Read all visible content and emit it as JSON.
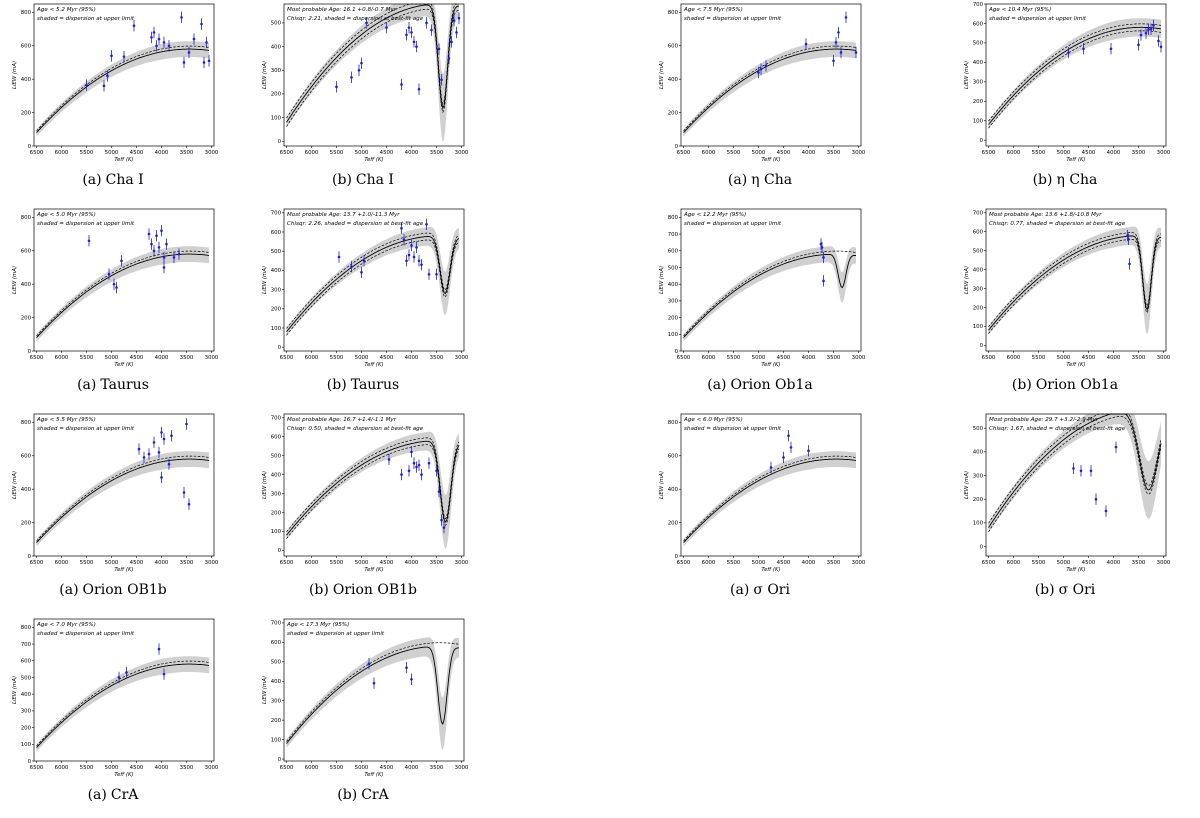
{
  "common": {
    "ylabel": "LiEW (mA)",
    "xlabel": "Teff (K)",
    "xticks": [
      6500,
      6000,
      5500,
      5000,
      4500,
      4000,
      3500,
      3000
    ]
  },
  "colors": {
    "data": "#1f1fd0",
    "band": "#d0d0d0",
    "line": "#000000"
  },
  "chart_data": [
    {
      "type": "line",
      "caption": {
        "prefix": "(a)",
        "name": "Cha I"
      },
      "kind": "upper",
      "ann": [
        "Age < 5.2 Myr (95%)",
        "shaded = dispersion at upper limit"
      ],
      "ylim": [
        0,
        850
      ],
      "yticks": [
        0,
        200,
        400,
        600,
        800
      ],
      "dip": null,
      "points": [
        [
          5500,
          365
        ],
        [
          5150,
          360
        ],
        [
          5080,
          420
        ],
        [
          5000,
          540
        ],
        [
          4750,
          535
        ],
        [
          4550,
          720
        ],
        [
          4200,
          650
        ],
        [
          4150,
          680
        ],
        [
          4100,
          600
        ],
        [
          4050,
          640
        ],
        [
          3950,
          620
        ],
        [
          3850,
          600
        ],
        [
          3600,
          770
        ],
        [
          3550,
          500
        ],
        [
          3450,
          560
        ],
        [
          3350,
          640
        ],
        [
          3200,
          730
        ],
        [
          3150,
          500
        ],
        [
          3100,
          620
        ],
        [
          3050,
          510
        ]
      ]
    },
    {
      "type": "line",
      "caption": {
        "prefix": "(b)",
        "name": "Cha I"
      },
      "kind": "best",
      "ann": [
        "Most probable Age: 16.1 +0.8/-0.7 Myr",
        "Chisqr: 2.21, shaded = dispersion at best-fit age"
      ],
      "ylim": [
        -20,
        580
      ],
      "yticks": [
        0,
        100,
        200,
        300,
        400,
        500
      ],
      "dip": {
        "center": 3370,
        "width": 130,
        "depth": 440
      },
      "points": [
        [
          5500,
          230
        ],
        [
          5200,
          270
        ],
        [
          5050,
          300
        ],
        [
          5000,
          330
        ],
        [
          4900,
          500
        ],
        [
          4500,
          480
        ],
        [
          4200,
          240
        ],
        [
          4100,
          450
        ],
        [
          4050,
          480
        ],
        [
          4000,
          460
        ],
        [
          3950,
          420
        ],
        [
          3900,
          400
        ],
        [
          3850,
          220
        ],
        [
          3700,
          500
        ],
        [
          3600,
          470
        ],
        [
          3450,
          390
        ],
        [
          3400,
          260
        ],
        [
          3250,
          350
        ],
        [
          3200,
          420
        ],
        [
          3150,
          510
        ],
        [
          3100,
          460
        ],
        [
          3050,
          520
        ]
      ]
    },
    {
      "type": "line",
      "caption": {
        "prefix": "(a)",
        "name": "η Cha"
      },
      "kind": "upper",
      "ann": [
        "Age < 7.5 Myr (95%)",
        "shaded = dispersion at upper limit"
      ],
      "ylim": [
        0,
        850
      ],
      "yticks": [
        0,
        200,
        400,
        600,
        800
      ],
      "dip": null,
      "points": [
        [
          5000,
          440
        ],
        [
          4950,
          460
        ],
        [
          4850,
          480
        ],
        [
          4050,
          610
        ],
        [
          3500,
          510
        ],
        [
          3450,
          620
        ],
        [
          3400,
          680
        ],
        [
          3350,
          560
        ],
        [
          3250,
          770
        ],
        [
          3050,
          560
        ]
      ]
    },
    {
      "type": "line",
      "caption": {
        "prefix": "(b)",
        "name": "η Cha"
      },
      "kind": "best",
      "ann": [
        "Age < 10.4 Myr (95%)",
        "shaded = dispersion at upper limit"
      ],
      "ylim": [
        -30,
        700
      ],
      "yticks": [
        0,
        100,
        200,
        300,
        400,
        500,
        600,
        700
      ],
      "dip": null,
      "points": [
        [
          4900,
          450
        ],
        [
          4600,
          470
        ],
        [
          4050,
          470
        ],
        [
          3500,
          490
        ],
        [
          3450,
          540
        ],
        [
          3350,
          550
        ],
        [
          3300,
          570
        ],
        [
          3250,
          570
        ],
        [
          3200,
          590
        ],
        [
          3100,
          510
        ],
        [
          3050,
          480
        ]
      ]
    },
    {
      "type": "line",
      "caption": {
        "prefix": "(a)",
        "name": "Taurus"
      },
      "kind": "upper",
      "ann": [
        "Age < 5.0 Myr (95%)",
        "shaded = dispersion at upper limit"
      ],
      "ylim": [
        0,
        850
      ],
      "yticks": [
        0,
        200,
        400,
        600,
        800
      ],
      "dip": null,
      "points": [
        [
          5450,
          660
        ],
        [
          5050,
          460
        ],
        [
          4950,
          400
        ],
        [
          4900,
          380
        ],
        [
          4800,
          540
        ],
        [
          4250,
          700
        ],
        [
          4200,
          640
        ],
        [
          4150,
          600
        ],
        [
          4100,
          690
        ],
        [
          4050,
          620
        ],
        [
          4000,
          720
        ],
        [
          3950,
          560
        ],
        [
          3950,
          500
        ],
        [
          3900,
          640
        ],
        [
          3750,
          560
        ],
        [
          3650,
          580
        ]
      ]
    },
    {
      "type": "line",
      "caption": {
        "prefix": "(b)",
        "name": "Taurus"
      },
      "kind": "best",
      "ann": [
        "Most probable Age: 13.7 +1.0/-11.3 Myr",
        "Chisqr: 2.26, shaded = dispersion at best-fit age"
      ],
      "ylim": [
        -20,
        720
      ],
      "yticks": [
        0,
        100,
        200,
        300,
        400,
        500,
        600,
        700
      ],
      "dip": {
        "center": 3330,
        "width": 140,
        "depth": 300
      },
      "points": [
        [
          5450,
          470
        ],
        [
          5200,
          420
        ],
        [
          5000,
          390
        ],
        [
          4950,
          450
        ],
        [
          4200,
          620
        ],
        [
          4150,
          560
        ],
        [
          4100,
          450
        ],
        [
          4050,
          480
        ],
        [
          4000,
          530
        ],
        [
          3950,
          470
        ],
        [
          3900,
          520
        ],
        [
          3850,
          450
        ],
        [
          3800,
          430
        ],
        [
          3700,
          640
        ],
        [
          3650,
          380
        ],
        [
          3500,
          380
        ]
      ]
    },
    {
      "type": "line",
      "caption": {
        "prefix": "(a)",
        "name": "Orion Ob1a"
      },
      "kind": "upper",
      "ann": [
        "Age < 12.2 Myr (95%)",
        "shaded = dispersion at upper limit"
      ],
      "ylim": [
        0,
        850
      ],
      "yticks": [
        0,
        100,
        200,
        300,
        400,
        500,
        600,
        700,
        800
      ],
      "dip": {
        "center": 3330,
        "width": 110,
        "depth": 200
      },
      "points": [
        [
          3750,
          640
        ],
        [
          3730,
          620
        ],
        [
          3700,
          560
        ],
        [
          3700,
          420
        ]
      ]
    },
    {
      "type": "line",
      "caption": {
        "prefix": "(b)",
        "name": "Orion Ob1a"
      },
      "kind": "best",
      "ann": [
        "Most probable Age: 13.6 +1.8/-10.8 Myr",
        "Chisqr: 0.77, shaded = dispersion at best-fit age"
      ],
      "ylim": [
        -30,
        720
      ],
      "yticks": [
        0,
        100,
        200,
        300,
        400,
        500,
        600,
        700
      ],
      "dip": {
        "center": 3330,
        "width": 120,
        "depth": 390
      },
      "points": [
        [
          3720,
          580
        ],
        [
          3700,
          560
        ],
        [
          3680,
          430
        ]
      ]
    },
    {
      "type": "line",
      "caption": {
        "prefix": "(a)",
        "name": "Orion OB1b"
      },
      "kind": "upper",
      "ann": [
        "Age < 5.5 Myr (95%)",
        "shaded = dispersion at upper limit"
      ],
      "ylim": [
        0,
        850
      ],
      "yticks": [
        0,
        200,
        400,
        600,
        800
      ],
      "dip": null,
      "points": [
        [
          4450,
          640
        ],
        [
          4350,
          590
        ],
        [
          4250,
          610
        ],
        [
          4150,
          680
        ],
        [
          4050,
          620
        ],
        [
          4000,
          740
        ],
        [
          4000,
          470
        ],
        [
          3950,
          700
        ],
        [
          3850,
          550
        ],
        [
          3800,
          720
        ],
        [
          3550,
          380
        ],
        [
          3500,
          790
        ],
        [
          3450,
          310
        ]
      ]
    },
    {
      "type": "line",
      "caption": {
        "prefix": "(b)",
        "name": "Orion OB1b"
      },
      "kind": "best",
      "ann": [
        "Most probable Age: 16.7 +1.4/-1.1 Myr",
        "Chisqr: 0.50, shaded = dispersion at best-fit age"
      ],
      "ylim": [
        -30,
        720
      ],
      "yticks": [
        0,
        100,
        200,
        300,
        400,
        500,
        600,
        700
      ],
      "dip": {
        "center": 3320,
        "width": 150,
        "depth": 430
      },
      "points": [
        [
          4450,
          480
        ],
        [
          4200,
          400
        ],
        [
          4050,
          420
        ],
        [
          4000,
          520
        ],
        [
          3950,
          460
        ],
        [
          3900,
          440
        ],
        [
          3850,
          450
        ],
        [
          3800,
          400
        ],
        [
          3650,
          460
        ],
        [
          3500,
          420
        ],
        [
          3450,
          310
        ],
        [
          3400,
          160
        ],
        [
          3350,
          120
        ]
      ]
    },
    {
      "type": "line",
      "caption": {
        "prefix": "(a)",
        "name": "σ Ori"
      },
      "kind": "upper",
      "ann": [
        "Age < 6.0 Myr (95%)",
        "shaded = dispersion at upper limit"
      ],
      "ylim": [
        0,
        850
      ],
      "yticks": [
        0,
        200,
        400,
        600,
        800
      ],
      "dip": null,
      "points": [
        [
          4750,
          530
        ],
        [
          4500,
          590
        ],
        [
          4400,
          720
        ],
        [
          4350,
          650
        ],
        [
          4000,
          630
        ]
      ]
    },
    {
      "type": "line",
      "caption": {
        "prefix": "(b)",
        "name": "σ Ori"
      },
      "kind": "best",
      "ann": [
        "Most probable Age: 29.7 +3.2/-2.9 Myr",
        "Chisqr: 1.67, shaded = dispersion at best-fit age"
      ],
      "ylim": [
        -40,
        560
      ],
      "yticks": [
        0,
        100,
        200,
        300,
        400,
        500
      ],
      "dip": {
        "center": 3300,
        "width": 260,
        "depth": 340
      },
      "points": [
        [
          4800,
          330
        ],
        [
          4650,
          320
        ],
        [
          4450,
          320
        ],
        [
          4350,
          200
        ],
        [
          4150,
          150
        ],
        [
          3950,
          420
        ]
      ]
    },
    {
      "type": "line",
      "caption": {
        "prefix": "(a)",
        "name": "CrA"
      },
      "kind": "upper",
      "ann": [
        "Age < 7.0 Myr (95%)",
        "shaded = dispersion at upper limit"
      ],
      "ylim": [
        0,
        850
      ],
      "yticks": [
        0,
        100,
        200,
        300,
        400,
        500,
        600,
        700,
        800
      ],
      "dip": null,
      "points": [
        [
          4850,
          500
        ],
        [
          4700,
          530
        ],
        [
          4050,
          670
        ],
        [
          3950,
          520
        ]
      ]
    },
    {
      "type": "line",
      "caption": {
        "prefix": "(b)",
        "name": "CrA"
      },
      "kind": "upper",
      "ann": [
        "Age < 17.3 Myr (95%)",
        "shaded = dispersion at upper limit"
      ],
      "ylim": [
        -10,
        720
      ],
      "yticks": [
        0,
        100,
        200,
        300,
        400,
        500,
        600,
        700
      ],
      "dip": {
        "center": 3380,
        "width": 130,
        "depth": 400
      },
      "points": [
        [
          4850,
          490
        ],
        [
          4750,
          390
        ],
        [
          4100,
          470
        ],
        [
          4000,
          410
        ]
      ]
    }
  ]
}
